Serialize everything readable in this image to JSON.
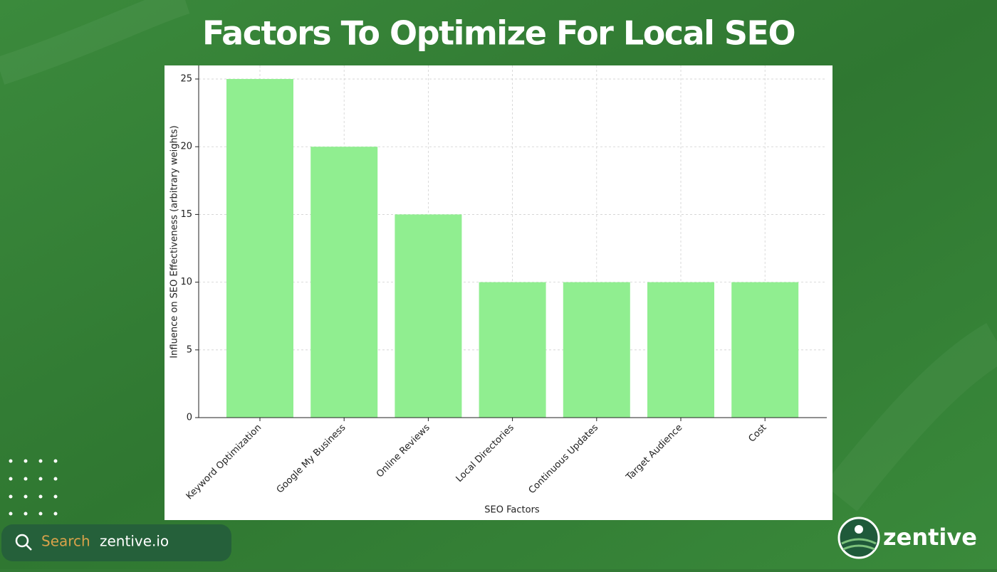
{
  "chart_data": {
    "type": "bar",
    "title": "Factors To Optimize For Local SEO",
    "x_label": "SEO Factors",
    "y_label": "Influence on SEO Effectiveness (arbitrary weights)",
    "categories": [
      "Keyword Optimization",
      "Google My Business",
      "Online Reviews",
      "Local Directories",
      "Continuous Updates",
      "Target Audience",
      "Cost"
    ],
    "values": [
      25,
      20,
      15,
      10,
      10,
      10,
      10
    ],
    "color": "#90ee90",
    "ylim": [
      0,
      26
    ],
    "yticks": [
      0,
      5,
      10,
      15,
      20,
      25
    ],
    "grid": true
  },
  "footer": {
    "search_label": "Search",
    "search_text": "zentive.io",
    "brand": "zentive"
  }
}
